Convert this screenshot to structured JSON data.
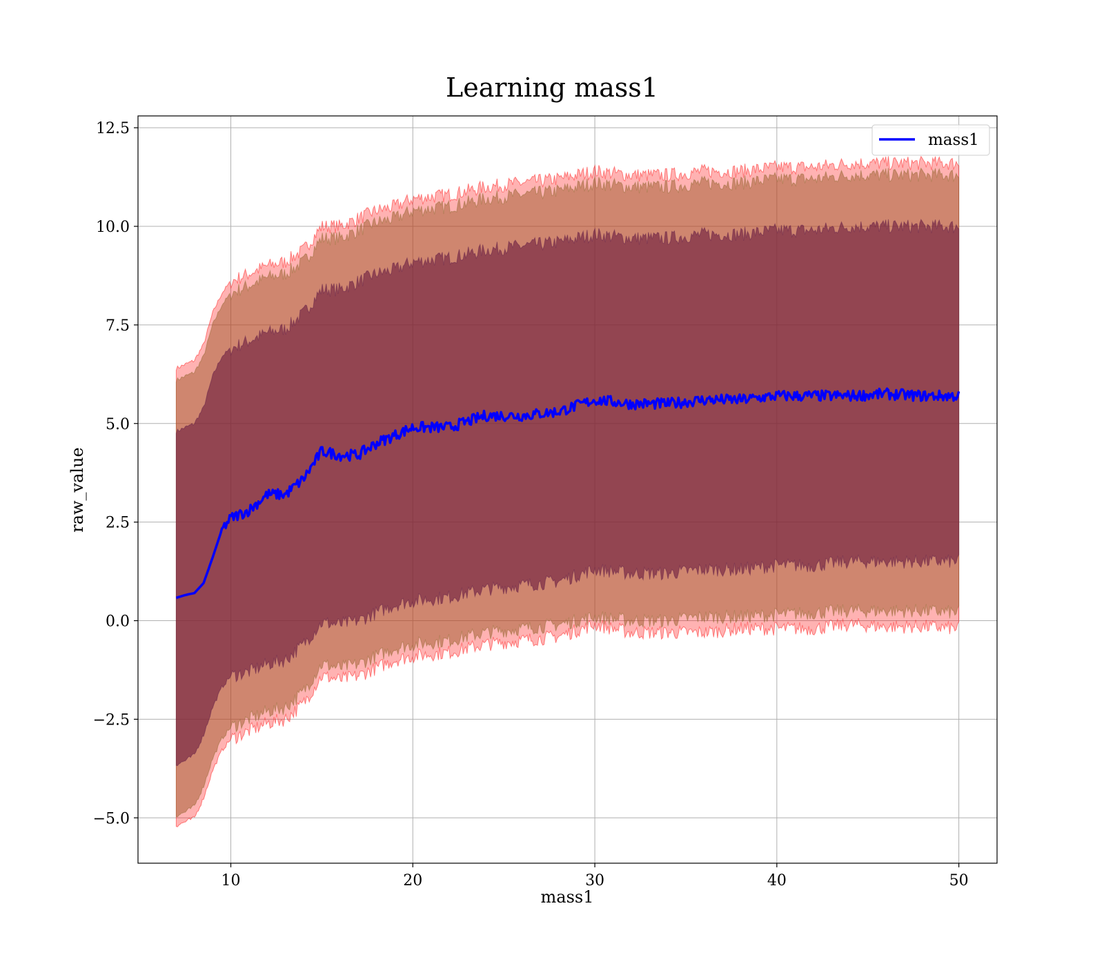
{
  "chart_data": {
    "type": "area",
    "title": "Learning mass1",
    "xlabel": "mass1",
    "ylabel": "raw_value",
    "xlim": [
      4.9,
      52.1
    ],
    "ylim": [
      -6.15,
      12.8
    ],
    "x_ticks": [
      10,
      20,
      30,
      40,
      50
    ],
    "x_tick_labels": [
      "10",
      "20",
      "30",
      "40",
      "50"
    ],
    "y_ticks": [
      -5.0,
      -2.5,
      0.0,
      2.5,
      5.0,
      7.5,
      10.0,
      12.5
    ],
    "y_tick_labels": [
      "−5.0",
      "−2.5",
      "0.0",
      "2.5",
      "5.0",
      "7.5",
      "10.0",
      "12.5"
    ],
    "grid": true,
    "legend": {
      "placement": "top-right",
      "entries": [
        "mass1"
      ]
    },
    "colors": {
      "line": "#0000ff",
      "band_outer": "#ff0000",
      "band_mid": "#a05a2c",
      "band_inner": "#6a1b3d"
    },
    "x": [
      7.0,
      7.5,
      8.0,
      8.5,
      9.0,
      9.5,
      10.0,
      11.0,
      12.0,
      13.0,
      14.0,
      15.0,
      16.0,
      17.0,
      18.0,
      19.0,
      20.0,
      22.0,
      24.0,
      26.0,
      28.0,
      30.0,
      32.0,
      34.0,
      36.0,
      38.0,
      40.0,
      42.0,
      44.0,
      46.0,
      48.0,
      50.0
    ],
    "series": [
      {
        "name": "mass1",
        "values": [
          0.58,
          0.65,
          0.7,
          0.95,
          1.6,
          2.3,
          2.6,
          2.8,
          3.2,
          3.2,
          3.6,
          4.3,
          4.2,
          4.2,
          4.5,
          4.7,
          4.9,
          4.9,
          5.2,
          5.2,
          5.3,
          5.6,
          5.5,
          5.5,
          5.6,
          5.6,
          5.7,
          5.7,
          5.7,
          5.75,
          5.7,
          5.7
        ]
      }
    ],
    "bands": [
      {
        "level": "outer",
        "lower": [
          -5.2,
          -5.1,
          -5.0,
          -4.5,
          -3.8,
          -3.3,
          -3.0,
          -2.8,
          -2.6,
          -2.5,
          -2.1,
          -1.4,
          -1.5,
          -1.4,
          -1.2,
          -1.0,
          -0.9,
          -0.8,
          -0.6,
          -0.5,
          -0.4,
          -0.1,
          -0.3,
          -0.3,
          -0.3,
          -0.2,
          -0.2,
          -0.2,
          -0.1,
          -0.15,
          -0.15,
          -0.2
        ],
        "upper": [
          6.4,
          6.5,
          6.6,
          7.0,
          7.8,
          8.3,
          8.6,
          8.8,
          9.0,
          9.1,
          9.4,
          10.0,
          10.0,
          10.2,
          10.4,
          10.5,
          10.7,
          10.8,
          11.0,
          11.1,
          11.2,
          11.4,
          11.3,
          11.3,
          11.4,
          11.4,
          11.5,
          11.5,
          11.6,
          11.6,
          11.6,
          11.6
        ]
      },
      {
        "level": "middle",
        "lower": [
          -4.95,
          -4.85,
          -4.7,
          -4.2,
          -3.5,
          -3.0,
          -2.7,
          -2.5,
          -2.3,
          -2.2,
          -1.8,
          -1.1,
          -1.2,
          -1.1,
          -0.9,
          -0.7,
          -0.6,
          -0.5,
          -0.3,
          -0.2,
          -0.1,
          0.1,
          0.0,
          0.0,
          0.1,
          0.1,
          0.15,
          0.2,
          0.25,
          0.25,
          0.25,
          0.2
        ],
        "upper": [
          6.1,
          6.2,
          6.3,
          6.7,
          7.5,
          8.0,
          8.3,
          8.5,
          8.7,
          8.8,
          9.1,
          9.7,
          9.7,
          9.9,
          10.1,
          10.2,
          10.4,
          10.5,
          10.7,
          10.8,
          10.9,
          11.1,
          11.0,
          11.0,
          11.1,
          11.1,
          11.2,
          11.2,
          11.3,
          11.3,
          11.3,
          11.3
        ]
      },
      {
        "level": "inner",
        "lower": [
          -3.65,
          -3.55,
          -3.4,
          -2.9,
          -2.2,
          -1.7,
          -1.4,
          -1.3,
          -1.1,
          -1.0,
          -0.6,
          -0.05,
          -0.1,
          0.0,
          0.2,
          0.4,
          0.5,
          0.6,
          0.8,
          0.9,
          1.0,
          1.3,
          1.2,
          1.2,
          1.3,
          1.3,
          1.4,
          1.4,
          1.5,
          1.5,
          1.5,
          1.5
        ],
        "upper": [
          4.8,
          4.9,
          5.0,
          5.4,
          6.2,
          6.7,
          6.9,
          7.1,
          7.3,
          7.4,
          7.8,
          8.4,
          8.4,
          8.6,
          8.8,
          8.9,
          9.1,
          9.2,
          9.4,
          9.5,
          9.6,
          9.8,
          9.7,
          9.7,
          9.8,
          9.8,
          9.9,
          9.9,
          10.0,
          10.0,
          10.0,
          10.0
        ]
      }
    ]
  }
}
